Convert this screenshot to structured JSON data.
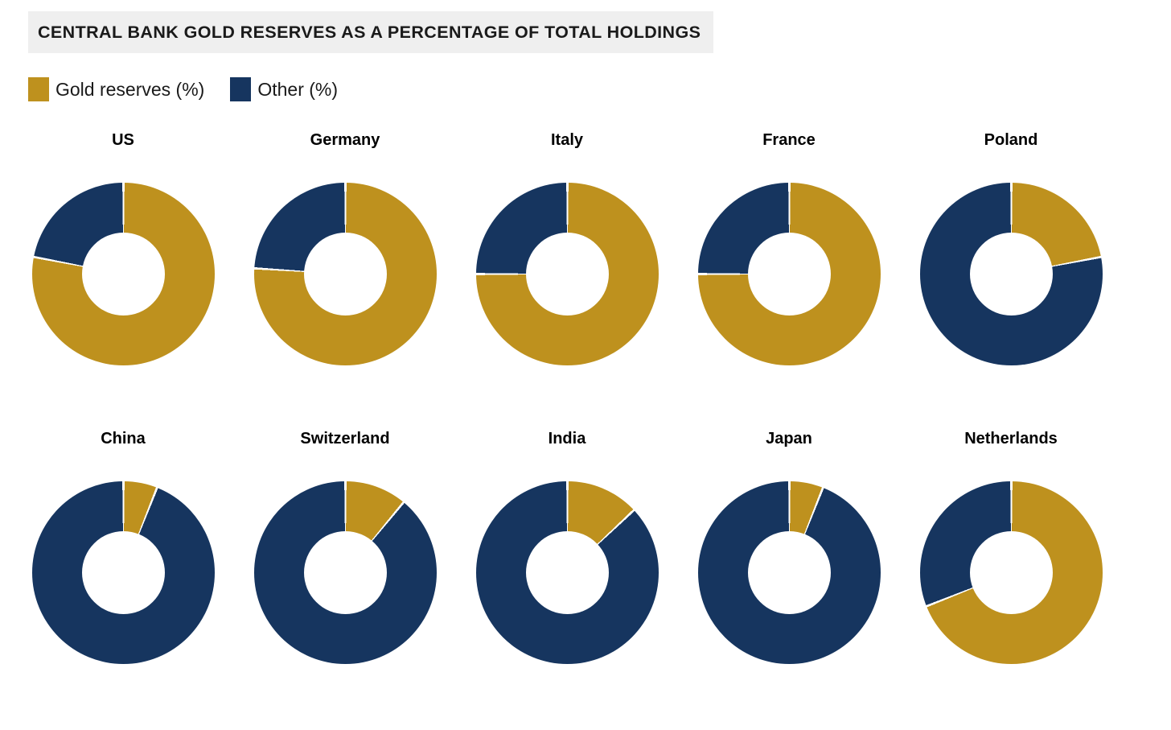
{
  "title": "CENTRAL BANK GOLD RESERVES AS A PERCENTAGE OF TOTAL HOLDINGS",
  "legend": [
    {
      "label": "Gold reserves (%)",
      "color": "#be911e"
    },
    {
      "label": "Other (%)",
      "color": "#16355f"
    }
  ],
  "colors": {
    "gold": "#be911e",
    "navy": "#16355f",
    "title_background": "#efefef",
    "separator": "#ffffff"
  },
  "chart_data": {
    "type": "pie",
    "subtype": "donut-grid",
    "title": "CENTRAL BANK GOLD RESERVES AS A PERCENTAGE OF TOTAL HOLDINGS",
    "legend_entries": [
      "Gold reserves (%)",
      "Other (%)"
    ],
    "legend_position": "top-left",
    "start_angle_deg": 0,
    "direction": "clockwise",
    "charts": [
      {
        "country": "US",
        "gold_pct": 78,
        "other_pct": 22
      },
      {
        "country": "Germany",
        "gold_pct": 76,
        "other_pct": 24
      },
      {
        "country": "Italy",
        "gold_pct": 75,
        "other_pct": 25
      },
      {
        "country": "France",
        "gold_pct": 75,
        "other_pct": 25
      },
      {
        "country": "Poland",
        "gold_pct": 22,
        "other_pct": 78
      },
      {
        "country": "China",
        "gold_pct": 6,
        "other_pct": 94
      },
      {
        "country": "Switzerland",
        "gold_pct": 11,
        "other_pct": 89
      },
      {
        "country": "India",
        "gold_pct": 13,
        "other_pct": 87
      },
      {
        "country": "Japan",
        "gold_pct": 6,
        "other_pct": 94
      },
      {
        "country": "Netherlands",
        "gold_pct": 69,
        "other_pct": 31
      }
    ]
  }
}
